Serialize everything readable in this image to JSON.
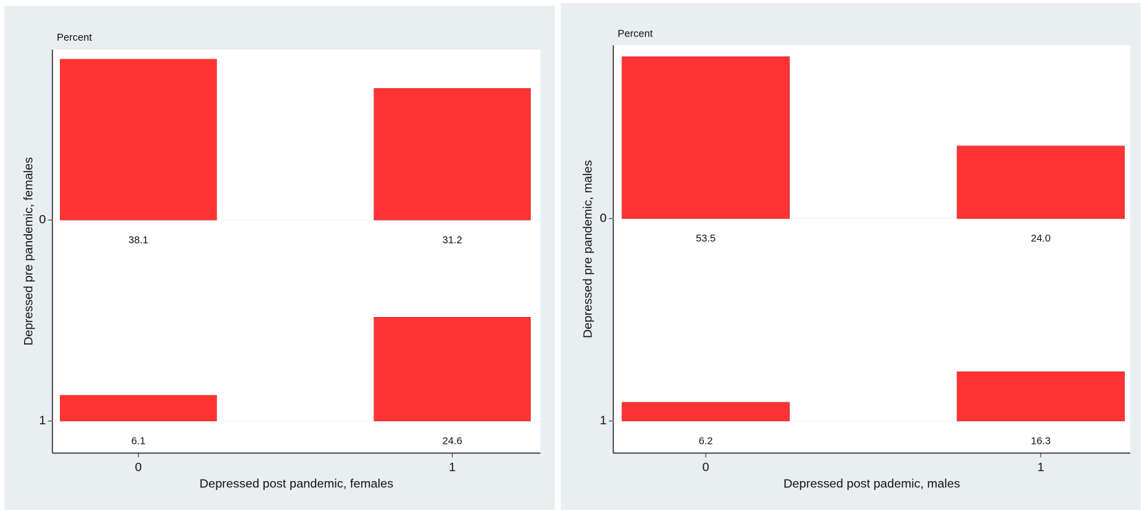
{
  "chart_data": [
    {
      "type": "tabplot",
      "value_axis_label": "Percent",
      "x_title": "Depressed post pandemic, females",
      "y_title": "Depressed pre pandemic, females",
      "categories": [
        "0",
        "1"
      ],
      "series": [
        {
          "name": "0",
          "color": "#ff3333",
          "values": [
            38.1,
            31.2
          ],
          "value_labels": [
            "38.1",
            "31.2"
          ]
        },
        {
          "name": "1",
          "color": "#ff3333",
          "values": [
            6.1,
            24.6
          ],
          "value_labels": [
            "6.1",
            "24.6"
          ]
        }
      ]
    },
    {
      "type": "tabplot",
      "value_axis_label": "Percent",
      "x_title": "Depressed post pademic, males",
      "y_title": "Depressed pre pandemic, males",
      "categories": [
        "0",
        "1"
      ],
      "series": [
        {
          "name": "0",
          "color": "#ff3333",
          "values": [
            53.5,
            24.0
          ],
          "value_labels": [
            "53.5",
            "24.0"
          ]
        },
        {
          "name": "1",
          "color": "#ff3333",
          "values": [
            6.2,
            16.3
          ],
          "value_labels": [
            "6.2",
            "16.3"
          ]
        }
      ]
    }
  ]
}
